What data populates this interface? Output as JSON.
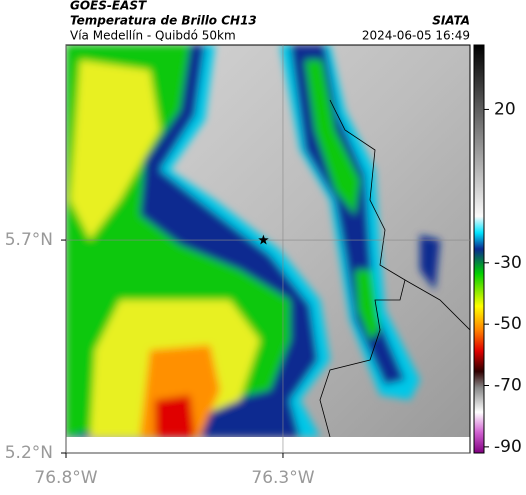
{
  "header": {
    "satellite": "GOES-EAST",
    "product": "Temperatura de Brillo CH13",
    "route": "Vía Medellín - Quibdó 50km",
    "source": "SIATA",
    "datetime": "2024-06-05 16:49"
  },
  "map": {
    "lat_lim": [
      5.2,
      6.158
    ],
    "lon_lim": [
      -76.8,
      -75.869
    ],
    "lat_ticks": [
      {
        "value": 5.2,
        "label": "5.2°N"
      },
      {
        "value": 5.7,
        "label": "5.7°N"
      }
    ],
    "lon_ticks": [
      {
        "value": -76.8,
        "label": "76.8°W"
      },
      {
        "value": -76.3,
        "label": "76.3°W"
      }
    ],
    "marker": {
      "lat": 5.7,
      "lon": -76.345
    }
  },
  "colorbar": {
    "lim": [
      -92,
      41
    ],
    "ticks": [
      20,
      -30,
      -50,
      -70,
      -90
    ]
  }
}
